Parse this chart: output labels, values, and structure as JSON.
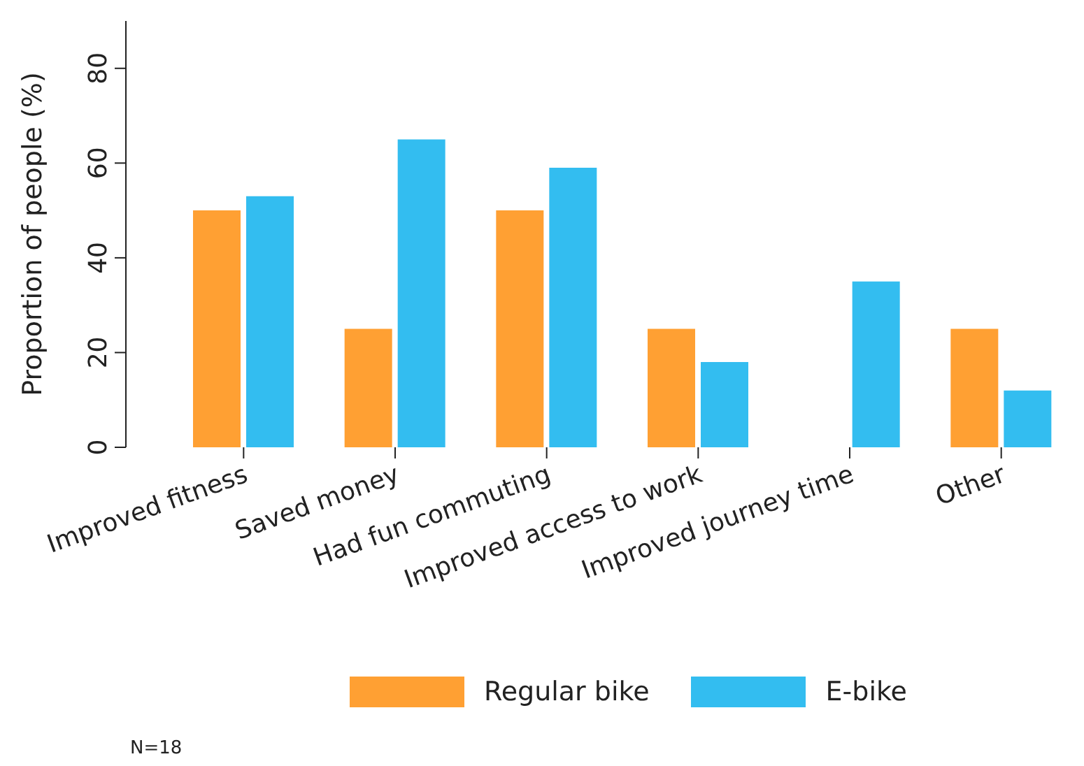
{
  "chart_data": {
    "type": "bar",
    "categories": [
      "Improved fitness",
      "Saved money",
      "Had fun commuting",
      "Improved access to work",
      "Improved journey time",
      "Other"
    ],
    "series": [
      {
        "name": "Regular bike",
        "color": "#ffa033",
        "values": [
          50,
          25,
          50,
          25,
          0,
          25
        ]
      },
      {
        "name": "E-bike",
        "color": "#33bdf0",
        "values": [
          53,
          65,
          59,
          18,
          35,
          12
        ]
      }
    ],
    "ylabel": "Proportion of people (%)",
    "ylim": [
      0,
      90
    ],
    "yticks": [
      0,
      20,
      40,
      60,
      80
    ],
    "grid": false,
    "legend": "bottom",
    "annotations": [
      "N=18"
    ]
  }
}
